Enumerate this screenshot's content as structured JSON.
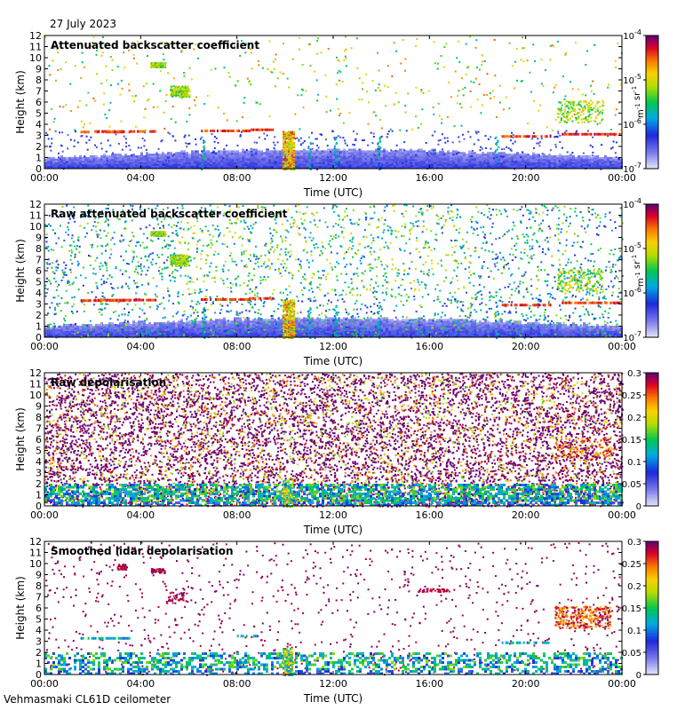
{
  "date_label": "27 July 2023",
  "footer_label": "Vehmasmaki CL61D ceilometer",
  "chart_data": [
    {
      "type": "heatmap",
      "title": "Attenuated backscatter coefficient",
      "xlabel": "Time (UTC)",
      "ylabel": "Height (km)",
      "x_ticks": [
        "00:00",
        "04:00",
        "08:00",
        "12:00",
        "16:00",
        "20:00",
        "00:00"
      ],
      "y_ticks": [
        0,
        1,
        2,
        3,
        4,
        5,
        6,
        7,
        8,
        9,
        10,
        11,
        12
      ],
      "ylim": [
        0,
        12
      ],
      "colorbar": {
        "scale": "log",
        "ticks": [
          "10-7",
          "10-6",
          "10-5",
          "10-4"
        ],
        "tick_values": [
          1e-07,
          1e-06,
          1e-05,
          0.0001
        ],
        "label": "m-1 sr-1"
      },
      "style": "clean"
    },
    {
      "type": "heatmap",
      "title": "Raw attenuated backscatter coefficient",
      "xlabel": "Time (UTC)",
      "ylabel": "Height (km)",
      "x_ticks": [
        "00:00",
        "04:00",
        "08:00",
        "12:00",
        "16:00",
        "20:00",
        "00:00"
      ],
      "y_ticks": [
        0,
        1,
        2,
        3,
        4,
        5,
        6,
        7,
        8,
        9,
        10,
        11,
        12
      ],
      "ylim": [
        0,
        12
      ],
      "colorbar": {
        "scale": "log",
        "ticks": [
          "10-7",
          "10-6",
          "10-5",
          "10-4"
        ],
        "tick_values": [
          1e-07,
          1e-06,
          1e-05,
          0.0001
        ],
        "label": "m-1 sr-1"
      },
      "style": "raw"
    },
    {
      "type": "heatmap",
      "title": "Raw depolarisation",
      "xlabel": "Time (UTC)",
      "ylabel": "Height (km)",
      "x_ticks": [
        "00:00",
        "04:00",
        "08:00",
        "12:00",
        "16:00",
        "20:00",
        "00:00"
      ],
      "y_ticks": [
        0,
        1,
        2,
        3,
        4,
        5,
        6,
        7,
        8,
        9,
        10,
        11,
        12
      ],
      "ylim": [
        0,
        12
      ],
      "colorbar": {
        "scale": "linear",
        "ticks": [
          "0",
          "0.05",
          "0.1",
          "0.15",
          "0.2",
          "0.25",
          "0.3"
        ],
        "tick_values": [
          0,
          0.05,
          0.1,
          0.15,
          0.2,
          0.25,
          0.3
        ],
        "label": ""
      },
      "style": "depol_raw"
    },
    {
      "type": "heatmap",
      "title": "Smoothed lidar depolarisation",
      "xlabel": "Time (UTC)",
      "ylabel": "Height (km)",
      "x_ticks": [
        "00:00",
        "04:00",
        "08:00",
        "12:00",
        "16:00",
        "20:00",
        "00:00"
      ],
      "y_ticks": [
        0,
        1,
        2,
        3,
        4,
        5,
        6,
        7,
        8,
        9,
        10,
        11,
        12
      ],
      "ylim": [
        0,
        12
      ],
      "colorbar": {
        "scale": "linear",
        "ticks": [
          "0",
          "0.05",
          "0.1",
          "0.15",
          "0.2",
          "0.25",
          "0.3"
        ],
        "tick_values": [
          0,
          0.05,
          0.1,
          0.15,
          0.2,
          0.25,
          0.3
        ],
        "label": ""
      },
      "style": "depol_smooth"
    }
  ]
}
